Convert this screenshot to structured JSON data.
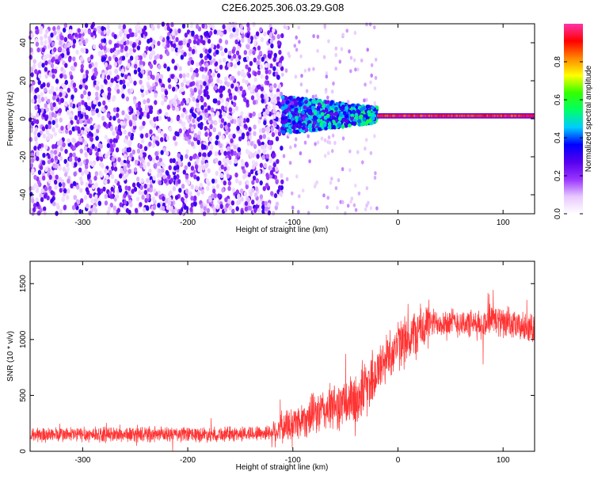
{
  "title": "C2E6.2025.306.03.29.G08",
  "chart_data": [
    {
      "type": "heatmap",
      "xlabel": "Height of straight line (km)",
      "ylabel": "Frequency (Hz)",
      "xlim": [
        -350,
        130
      ],
      "ylim": [
        -50,
        50
      ],
      "xticks": [
        -300,
        -200,
        -100,
        0,
        100
      ],
      "xtick_labels": [
        "-300",
        "-200",
        "-100",
        "0",
        "100"
      ],
      "yticks": [
        -40,
        -20,
        0,
        20,
        40
      ],
      "ytick_labels": [
        "-40",
        "-20",
        "0",
        "20",
        "40"
      ],
      "colorbar": {
        "label": "Normalized spectral amplitude",
        "range": [
          0,
          1
        ],
        "ticks": [
          0.0,
          0.2,
          0.4,
          0.6,
          0.8
        ],
        "tick_labels": [
          "0.0",
          "0.2",
          "0.4",
          "0.6",
          "0.8"
        ],
        "colors": [
          "#ffffff",
          "#e8c8ff",
          "#9933ff",
          "#5500ee",
          "#0000ff",
          "#00ccff",
          "#00ff66",
          "#33ff00",
          "#ffff00",
          "#ff8800",
          "#ff0000",
          "#ff33aa"
        ]
      },
      "regions": [
        {
          "x": [
            -350,
            -110
          ],
          "freq_range": [
            -50,
            50
          ],
          "amplitude": "noise 0.0-0.3"
        },
        {
          "x": [
            -110,
            -20
          ],
          "freq_center": 2,
          "freq_halfwidth": 10,
          "amplitude": "0.2-0.6"
        },
        {
          "x": [
            -20,
            130
          ],
          "freq_center": 1.5,
          "freq_halfwidth": 2,
          "amplitude": "0.8-1.0"
        }
      ],
      "grid": false
    },
    {
      "type": "line",
      "xlabel": "Height of straight line (km)",
      "ylabel": "SNR (10 * v/v)",
      "xlim": [
        -350,
        130
      ],
      "ylim": [
        0,
        1700
      ],
      "xticks": [
        -300,
        -200,
        -100,
        0,
        100
      ],
      "xtick_labels": [
        "-300",
        "-200",
        "-100",
        "0",
        "100"
      ],
      "yticks": [
        0,
        500,
        1000,
        1500
      ],
      "ytick_labels": [
        "0",
        "500",
        "1000",
        "1500"
      ],
      "color": "#ff3333",
      "grid": false,
      "x": [
        -350,
        -300,
        -250,
        -200,
        -150,
        -120,
        -100,
        -80,
        -60,
        -40,
        -30,
        -20,
        -10,
        0,
        10,
        20,
        30,
        40,
        60,
        80,
        90,
        100,
        110,
        120,
        130
      ],
      "y": [
        150,
        150,
        150,
        150,
        155,
        170,
        250,
        330,
        400,
        450,
        600,
        700,
        850,
        950,
        1000,
        1080,
        1140,
        1160,
        1150,
        1120,
        1200,
        1140,
        1120,
        1110,
        1100
      ]
    }
  ]
}
